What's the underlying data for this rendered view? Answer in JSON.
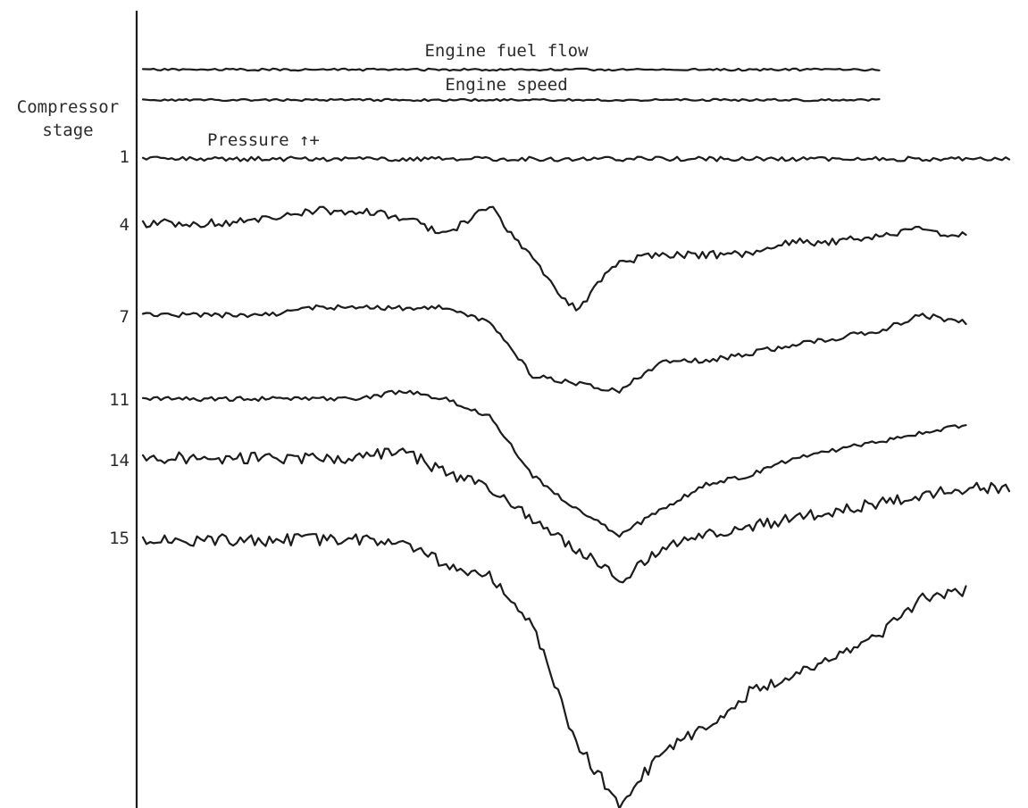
{
  "chart_data": {
    "type": "line",
    "title": "",
    "ylabel": "Compressor stage",
    "ylabel_lines": [
      "Compressor",
      "stage"
    ],
    "pressure_label": "Pressure ↑+",
    "grid": false,
    "legend": "none",
    "x": [
      0,
      5,
      10,
      15,
      20,
      25,
      30,
      35,
      40,
      45,
      50,
      55,
      60,
      65,
      70,
      75,
      80,
      85,
      90,
      95,
      100
    ],
    "series": [
      {
        "name": "Engine fuel flow",
        "values": [
          0,
          0,
          0,
          0,
          0,
          0,
          0,
          0,
          0,
          0,
          0,
          0,
          0,
          0,
          0,
          0,
          0,
          0,
          null,
          null,
          null
        ]
      },
      {
        "name": "Engine speed",
        "values": [
          0,
          0,
          0,
          0,
          0,
          0,
          0,
          0,
          0,
          0,
          0,
          0,
          0,
          0,
          0,
          0,
          0,
          0,
          null,
          null,
          null
        ]
      },
      {
        "name": "1",
        "values": [
          0,
          0,
          0,
          0,
          0,
          0,
          0,
          0,
          0,
          0,
          0,
          0,
          0,
          0,
          0,
          0,
          0,
          0,
          0,
          0,
          0
        ]
      },
      {
        "name": "4",
        "values": [
          0,
          0,
          0,
          0.1,
          0.2,
          0.2,
          0.1,
          -0.2,
          0.3,
          -0.6,
          -1.4,
          -0.6,
          -0.5,
          -0.5,
          -0.5,
          -0.3,
          -0.3,
          -0.2,
          -0.1,
          -0.2,
          null
        ]
      },
      {
        "name": "7",
        "values": [
          0,
          0,
          0,
          0,
          0.1,
          0.1,
          0.1,
          0.1,
          -0.1,
          -0.8,
          -0.9,
          -1.0,
          -0.6,
          -0.6,
          -0.5,
          -0.4,
          -0.3,
          -0.2,
          0,
          -0.1,
          null
        ]
      },
      {
        "name": "11",
        "values": [
          0,
          0,
          0,
          0,
          0,
          0,
          0.1,
          0,
          -0.2,
          -0.9,
          -1.3,
          -1.6,
          -1.3,
          -1.0,
          -0.9,
          -0.7,
          -0.6,
          -0.5,
          -0.4,
          -0.3,
          null
        ]
      },
      {
        "name": "14",
        "values": [
          0,
          0,
          0,
          0,
          0,
          0,
          0.1,
          -0.2,
          -0.4,
          -0.8,
          -1.2,
          -1.6,
          -1.2,
          -1.0,
          -0.9,
          -0.8,
          -0.7,
          -0.6,
          -0.5,
          -0.4,
          -0.4
        ]
      },
      {
        "name": "15",
        "values": [
          0,
          0,
          0,
          0,
          0,
          0,
          0,
          -0.3,
          -0.4,
          -1.0,
          -2.4,
          -3.1,
          -2.5,
          -2.2,
          -1.8,
          -1.6,
          -1.4,
          -1.1,
          -0.7,
          -0.6,
          null
        ]
      }
    ]
  }
}
